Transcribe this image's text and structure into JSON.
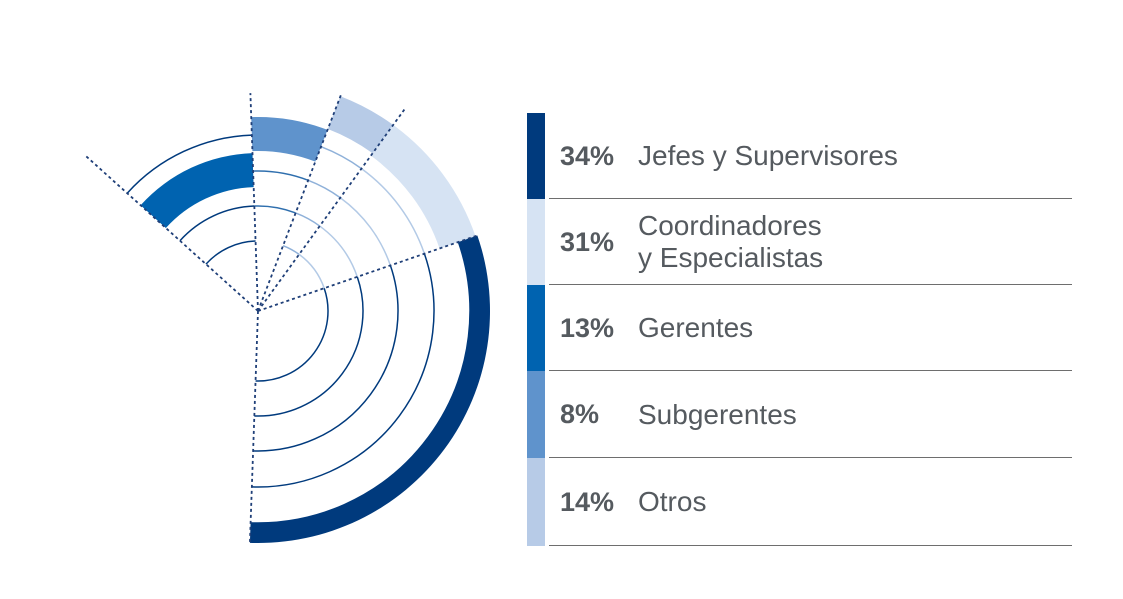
{
  "chart_data": {
    "type": "radial_bar",
    "title": "",
    "series": [
      {
        "value": 34,
        "pct_label": "34%",
        "label_lines": [
          "Jefes y Supervisores"
        ],
        "color": "#003a7d"
      },
      {
        "value": 31,
        "pct_label": "31%",
        "label_lines": [
          "Coordinadores",
          "y Especialistas"
        ],
        "color": "#d6e3f3"
      },
      {
        "value": 13,
        "pct_label": "13%",
        "label_lines": [
          "Gerentes"
        ],
        "color": "#0063b0"
      },
      {
        "value": 8,
        "pct_label": "8%",
        "label_lines": [
          "Subgerentes"
        ],
        "color": "#5f93cc"
      },
      {
        "value": 14,
        "pct_label": "14%",
        "label_lines": [
          "Otros"
        ],
        "color": "#b7cbe7"
      }
    ],
    "legend_position": "right"
  }
}
